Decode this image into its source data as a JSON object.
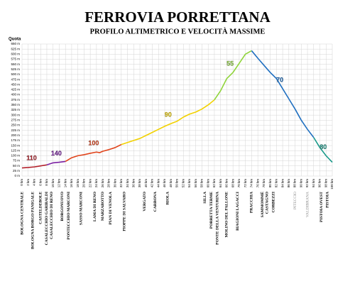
{
  "chart_data": {
    "type": "line",
    "title": "FERROVIA PORRETTANA",
    "subtitle": "PROFILO ALTIMETRICO E VELOCITÀ MASSIME",
    "y_label": "Quota",
    "xlim": [
      0,
      100
    ],
    "ylim": [
      0,
      650
    ],
    "grid": true,
    "yticks": [
      {
        "value": 0,
        "label": "0 m"
      },
      {
        "value": 25,
        "label": "25 m"
      },
      {
        "value": 50,
        "label": "50 m"
      },
      {
        "value": 75,
        "label": "75 m"
      },
      {
        "value": 100,
        "label": "100 m"
      },
      {
        "value": 125,
        "label": "125 m"
      },
      {
        "value": 150,
        "label": "150 m"
      },
      {
        "value": 175,
        "label": "175 m"
      },
      {
        "value": 200,
        "label": "200 m"
      },
      {
        "value": 225,
        "label": "225 m"
      },
      {
        "value": 250,
        "label": "250 m"
      },
      {
        "value": 275,
        "label": "275 m"
      },
      {
        "value": 300,
        "label": "300 m"
      },
      {
        "value": 325,
        "label": "325 m"
      },
      {
        "value": 350,
        "label": "350 m"
      },
      {
        "value": 375,
        "label": "375 m"
      },
      {
        "value": 400,
        "label": "400 m"
      },
      {
        "value": 425,
        "label": "425 m"
      },
      {
        "value": 450,
        "label": "450 m"
      },
      {
        "value": 475,
        "label": "475 m"
      },
      {
        "value": 500,
        "label": "500 m"
      },
      {
        "value": 525,
        "label": "525 m"
      },
      {
        "value": 550,
        "label": "550 m"
      },
      {
        "value": 575,
        "label": "575 m"
      },
      {
        "value": 600,
        "label": "600 m"
      },
      {
        "value": 625,
        "label": "625 m"
      },
      {
        "value": 650,
        "label": "650 m"
      }
    ],
    "xticks": [
      {
        "value": 0,
        "label": "0 km"
      },
      {
        "value": 2,
        "label": "2 km"
      },
      {
        "value": 4,
        "label": "4 km"
      },
      {
        "value": 6,
        "label": "6 km"
      },
      {
        "value": 8,
        "label": "8 km"
      },
      {
        "value": 10,
        "label": "10 km"
      },
      {
        "value": 12,
        "label": "12 km"
      },
      {
        "value": 14,
        "label": "14 km"
      },
      {
        "value": 16,
        "label": "16 km"
      },
      {
        "value": 18,
        "label": "18 km"
      },
      {
        "value": 20,
        "label": "20 km"
      },
      {
        "value": 22,
        "label": "22 km"
      },
      {
        "value": 24,
        "label": "24 km"
      },
      {
        "value": 26,
        "label": "26 km"
      },
      {
        "value": 28,
        "label": "28 km"
      },
      {
        "value": 30,
        "label": "30 km"
      },
      {
        "value": 32,
        "label": "32 km"
      },
      {
        "value": 34,
        "label": "34 km"
      },
      {
        "value": 36,
        "label": "36 km"
      },
      {
        "value": 38,
        "label": "38 km"
      },
      {
        "value": 40,
        "label": "40 km"
      },
      {
        "value": 42,
        "label": "42 km"
      },
      {
        "value": 44,
        "label": "44 km"
      },
      {
        "value": 46,
        "label": "46 km"
      },
      {
        "value": 48,
        "label": "48 km"
      },
      {
        "value": 50,
        "label": "50 km"
      },
      {
        "value": 52,
        "label": "52 km"
      },
      {
        "value": 54,
        "label": "54 km"
      },
      {
        "value": 56,
        "label": "56 km"
      },
      {
        "value": 58,
        "label": "58 km"
      },
      {
        "value": 60,
        "label": "60 km"
      },
      {
        "value": 62,
        "label": "62 km"
      },
      {
        "value": 64,
        "label": "64 km"
      },
      {
        "value": 66,
        "label": "66 km"
      },
      {
        "value": 68,
        "label": "68 km"
      },
      {
        "value": 70,
        "label": "70 km"
      },
      {
        "value": 72,
        "label": "72 km"
      },
      {
        "value": 74,
        "label": "74 km"
      },
      {
        "value": 76,
        "label": "76 km"
      },
      {
        "value": 78,
        "label": "78 km"
      },
      {
        "value": 80,
        "label": "80 km"
      },
      {
        "value": 82,
        "label": "82 km"
      },
      {
        "value": 84,
        "label": "84 km"
      },
      {
        "value": 86,
        "label": "86 km"
      },
      {
        "value": 88,
        "label": "88 km"
      },
      {
        "value": 90,
        "label": "90 km"
      },
      {
        "value": 92,
        "label": "92 km"
      },
      {
        "value": 94,
        "label": "94 km"
      },
      {
        "value": 96,
        "label": "96 km"
      },
      {
        "value": 98,
        "label": "98 km"
      },
      {
        "value": 100,
        "label": "100 km"
      }
    ],
    "series": [
      {
        "name": "110",
        "color": "#b3202a",
        "x": [
          0,
          2,
          4,
          6,
          8
        ],
        "values": [
          40,
          42,
          45,
          50,
          55
        ]
      },
      {
        "name": "140",
        "color": "#7a1fa2",
        "x": [
          8,
          10,
          12,
          14
        ],
        "values": [
          55,
          65,
          68,
          72
        ]
      },
      {
        "name": "100",
        "color": "#e0441c",
        "x": [
          14,
          16,
          18,
          20,
          22,
          24,
          25,
          26,
          28,
          30,
          32
        ],
        "values": [
          72,
          90,
          100,
          105,
          112,
          118,
          115,
          122,
          130,
          140,
          155
        ]
      },
      {
        "name": "90",
        "color": "#f2d100",
        "x": [
          32,
          34,
          36,
          38,
          40,
          42,
          44,
          46,
          48,
          50,
          52,
          54,
          56,
          58,
          60,
          62
        ],
        "values": [
          155,
          165,
          175,
          185,
          200,
          215,
          230,
          245,
          258,
          270,
          290,
          305,
          315,
          330,
          350,
          375
        ]
      },
      {
        "name": "55",
        "color": "#8fd43a",
        "x": [
          62,
          64,
          66,
          68,
          70,
          72,
          74
        ],
        "values": [
          375,
          420,
          480,
          510,
          555,
          600,
          617
        ]
      },
      {
        "name": "70",
        "color": "#1f6fc0",
        "x": [
          74,
          76,
          78,
          80,
          82,
          84,
          86,
          88,
          90,
          92,
          94
        ],
        "values": [
          617,
          580,
          545,
          510,
          480,
          430,
          380,
          330,
          275,
          230,
          190
        ]
      },
      {
        "name": "80",
        "color": "#1a9a8a",
        "x": [
          94,
          96,
          98,
          100
        ],
        "values": [
          190,
          140,
          100,
          68
        ]
      }
    ],
    "stations": [
      {
        "name": "BOLOGNA CENTRALE",
        "km": 0
      },
      {
        "name": "BOLOGNA BORGO PANIGALE",
        "km": 3.5
      },
      {
        "name": "CASTELDEBOLE",
        "km": 6
      },
      {
        "name": "CASALECCHIO GARIBALDI",
        "km": 8
      },
      {
        "name": "CASALECCHIO DI RENO",
        "km": 9.5
      },
      {
        "name": "BORGONUOVO",
        "km": 13
      },
      {
        "name": "PONTECCHIO MARCONI",
        "km": 15
      },
      {
        "name": "SASSO MARCONI",
        "km": 19
      },
      {
        "name": "LAMA DI RENO",
        "km": 23.5
      },
      {
        "name": "MARZABOTTO",
        "km": 26
      },
      {
        "name": "PIAN DI VENOLA",
        "km": 28.5
      },
      {
        "name": "PIOPPE DI SALVARO",
        "km": 33
      },
      {
        "name": "VERGATO",
        "km": 39.5
      },
      {
        "name": "CARBONA",
        "km": 43
      },
      {
        "name": "RIOLA",
        "km": 47
      },
      {
        "name": "SILLA",
        "km": 59
      },
      {
        "name": "PORRETTA TERME",
        "km": 61
      },
      {
        "name": "PONTE DELLA VENTURINA",
        "km": 63
      },
      {
        "name": "MOLINO DEL PALLONE",
        "km": 66
      },
      {
        "name": "BIAGIONI LAGACCI",
        "km": 69.5
      },
      {
        "name": "PRACCHIA",
        "km": 74
      },
      {
        "name": "SAMMOMMÈ",
        "km": 77.5
      },
      {
        "name": "CASTAGNO",
        "km": 79
      },
      {
        "name": "CORBEZZI",
        "km": 81
      },
      {
        "name": "PITECCIO",
        "km": 88,
        "color": "#8a8a8a"
      },
      {
        "name": "VALDIBRANA",
        "km": 92,
        "color": "#8a8a8a"
      },
      {
        "name": "PISTOIA OVEST",
        "km": 96.5
      },
      {
        "name": "PISTOIA",
        "km": 98.5
      }
    ]
  }
}
